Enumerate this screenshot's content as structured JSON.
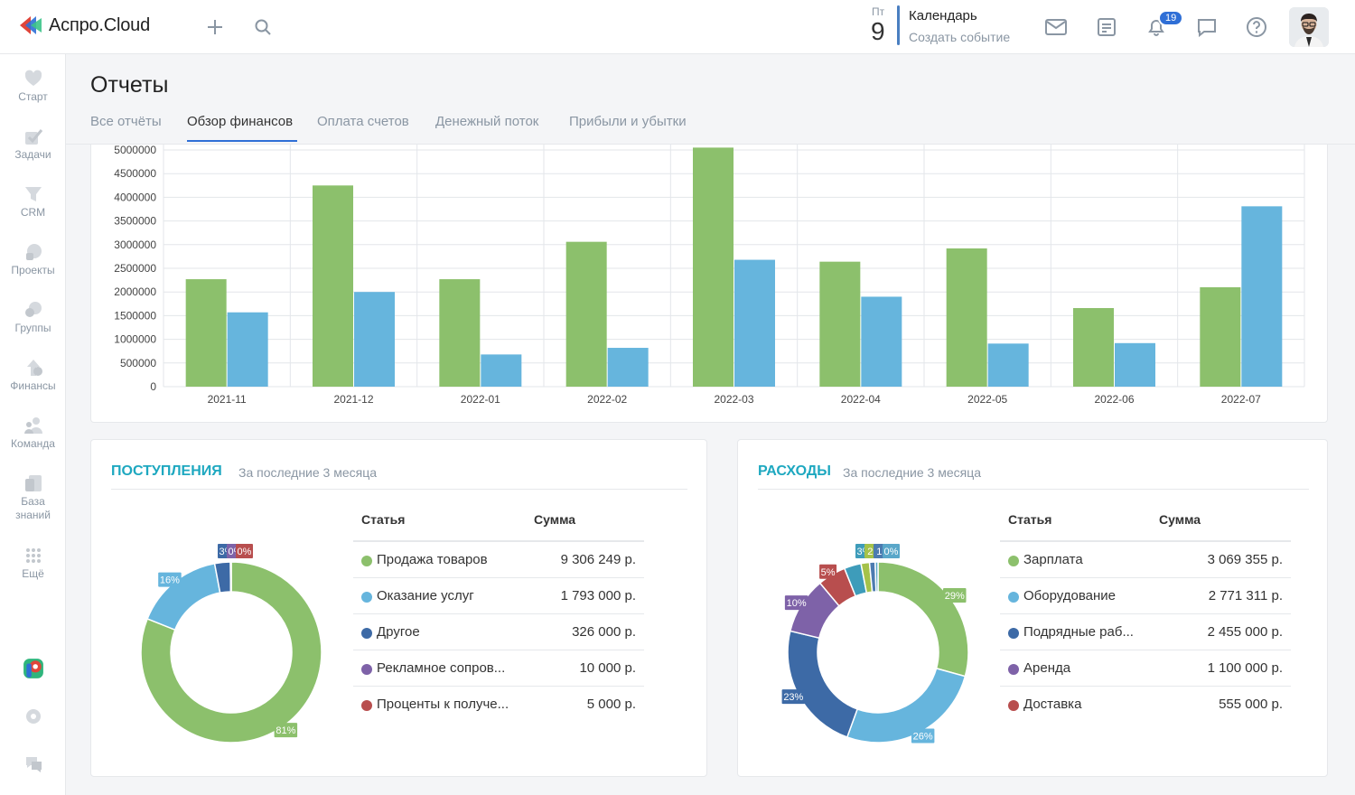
{
  "app": {
    "logo_text": "Аспро.Cloud"
  },
  "calendar": {
    "day_short": "Пт",
    "day_number": "9",
    "title": "Календарь",
    "subtitle": "Создать событие"
  },
  "notifications": {
    "count": "19"
  },
  "sidebar": {
    "items": [
      {
        "label": "Старт",
        "icon": "heart-icon"
      },
      {
        "label": "Задачи",
        "icon": "check-icon"
      },
      {
        "label": "CRM",
        "icon": "funnel-icon"
      },
      {
        "label": "Проекты",
        "icon": "projects-icon"
      },
      {
        "label": "Группы",
        "icon": "groups-icon"
      },
      {
        "label": "Финансы",
        "icon": "finance-icon"
      },
      {
        "label": "Команда",
        "icon": "team-icon"
      },
      {
        "label": "База знаний",
        "icon": "knowledge-icon"
      },
      {
        "label": "Ещё",
        "icon": "more-icon"
      }
    ]
  },
  "page": {
    "title": "Отчеты"
  },
  "tabs": [
    {
      "label": "Все отчёты",
      "active": false
    },
    {
      "label": "Обзор финансов",
      "active": true
    },
    {
      "label": "Оплата счетов",
      "active": false
    },
    {
      "label": "Денежный поток",
      "active": false
    },
    {
      "label": "Прибыли и убытки",
      "active": false
    }
  ],
  "colors": {
    "accent": "#2f6fd6",
    "section_title": "#1ea8c0",
    "green": "#8cc06c",
    "blue": "#66b5dd"
  },
  "chart_data": [
    {
      "type": "bar",
      "title": "",
      "categories": [
        "2021-11",
        "2021-12",
        "2022-01",
        "2022-02",
        "2022-03",
        "2022-04",
        "2022-05",
        "2022-06",
        "2022-07"
      ],
      "series": [
        {
          "color": "#8cc06c",
          "values": [
            2270000,
            4250000,
            2270000,
            3060000,
            5050000,
            2640000,
            2920000,
            1660000,
            2100000
          ]
        },
        {
          "color": "#66b5dd",
          "values": [
            1570000,
            2000000,
            680000,
            820000,
            2680000,
            1900000,
            910000,
            920000,
            3810000
          ]
        }
      ],
      "yticks": [
        "0",
        "500000",
        "1000000",
        "1500000",
        "2000000",
        "2500000",
        "3000000",
        "3500000",
        "4000000",
        "4500000",
        "5000000"
      ],
      "ylim": [
        0,
        5000000
      ],
      "grid": true
    },
    {
      "type": "pie",
      "title": "ПОСТУПЛЕНИЯ",
      "subtitle": "За последние 3 месяца",
      "slices": [
        {
          "label": "81%",
          "value": 81,
          "color": "#8cc06c"
        },
        {
          "label": "16%",
          "value": 16,
          "color": "#66b5dd"
        },
        {
          "label": "3%",
          "value": 2.8,
          "color": "#3d6aa6"
        },
        {
          "label": "0%",
          "value": 0.1,
          "color": "#7e62a8"
        },
        {
          "label": "0%",
          "value": 0.05,
          "color": "#b84e4e"
        }
      ]
    },
    {
      "type": "pie",
      "title": "РАСХОДЫ",
      "subtitle": "За последние 3 месяца",
      "slices": [
        {
          "label": "29%",
          "value": 29,
          "color": "#8cc06c"
        },
        {
          "label": "26%",
          "value": 26,
          "color": "#66b5dd"
        },
        {
          "label": "23%",
          "value": 23,
          "color": "#3d6aa6"
        },
        {
          "label": "10%",
          "value": 10,
          "color": "#7e62a8"
        },
        {
          "label": "5%",
          "value": 5,
          "color": "#b84e4e"
        },
        {
          "label": "3%",
          "value": 3,
          "color": "#3e9cba"
        },
        {
          "label": "2",
          "value": 1.5,
          "color": "#a5c24a"
        },
        {
          "label": "1",
          "value": 1,
          "color": "#4c7bb0"
        },
        {
          "label": "0%",
          "value": 0.5,
          "color": "#5aa7c9"
        }
      ]
    }
  ],
  "income": {
    "title": "ПОСТУПЛЕНИЯ",
    "subtitle": "За последние 3 месяца",
    "col_item": "Статья",
    "col_sum": "Сумма",
    "rows": [
      {
        "name": "Продажа товаров",
        "sum": "9 306 249 р.",
        "color": "#8cc06c"
      },
      {
        "name": "Оказание услуг",
        "sum": "1 793 000 р.",
        "color": "#66b5dd"
      },
      {
        "name": "Другое",
        "sum": "326 000 р.",
        "color": "#3d6aa6"
      },
      {
        "name": "Рекламное сопров...",
        "sum": "10 000 р.",
        "color": "#7e62a8"
      },
      {
        "name": "Проценты к получе...",
        "sum": "5 000 р.",
        "color": "#b84e4e"
      }
    ]
  },
  "expenses": {
    "title": "РАСХОДЫ",
    "subtitle": "За последние 3 месяца",
    "col_item": "Статья",
    "col_sum": "Сумма",
    "rows": [
      {
        "name": "Зарплата",
        "sum": "3 069 355 р.",
        "color": "#8cc06c"
      },
      {
        "name": "Оборудование",
        "sum": "2 771 311 р.",
        "color": "#66b5dd"
      },
      {
        "name": "Подрядные раб...",
        "sum": "2 455 000 р.",
        "color": "#3d6aa6"
      },
      {
        "name": "Аренда",
        "sum": "1 100 000 р.",
        "color": "#7e62a8"
      },
      {
        "name": "Доставка",
        "sum": "555 000 р.",
        "color": "#b84e4e"
      }
    ]
  }
}
